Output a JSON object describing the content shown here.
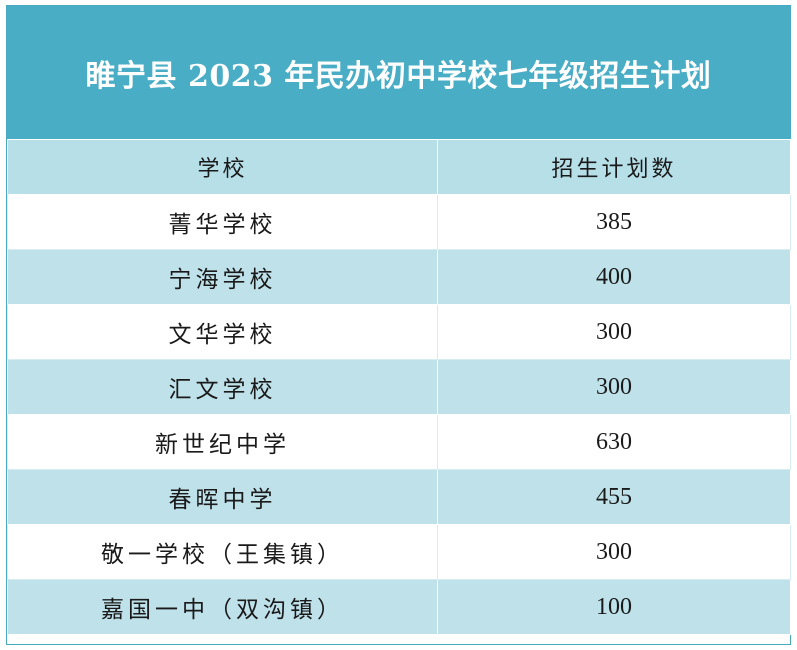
{
  "title": "睢宁县 2023 年民办初中学校七年级招生计划",
  "colors": {
    "title_bg": "#4aadc6",
    "header_bg": "#b6dfe8",
    "band_bg": "#bfe1ea"
  },
  "header": {
    "col1": "学校",
    "col2": "招生计划数"
  },
  "rows": [
    {
      "school": "菁华学校",
      "count": "385"
    },
    {
      "school": "宁海学校",
      "count": "400"
    },
    {
      "school": "文华学校",
      "count": "300"
    },
    {
      "school": "汇文学校",
      "count": "300"
    },
    {
      "school": "新世纪中学",
      "count": "630"
    },
    {
      "school": "春晖中学",
      "count": "455"
    },
    {
      "school": "敬一学校（王集镇）",
      "count": "300"
    },
    {
      "school": "嘉国一中（双沟镇）",
      "count": "100"
    }
  ]
}
